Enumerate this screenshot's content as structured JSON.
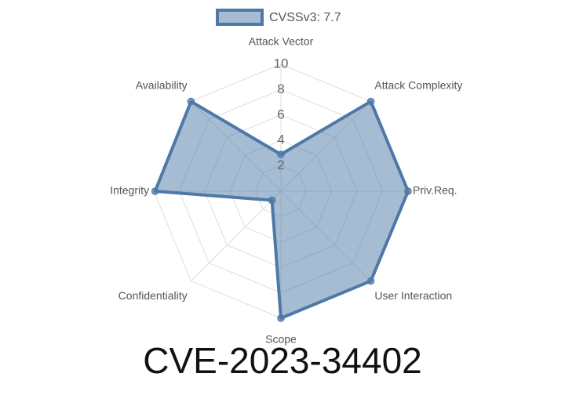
{
  "chart_data": {
    "type": "radar",
    "title": "CVE-2023-34402",
    "categories": [
      "Attack Vector",
      "Attack Complexity",
      "Priv.Req.",
      "User Interaction",
      "Scope",
      "Confidentiality",
      "Integrity",
      "Availability"
    ],
    "series": [
      {
        "name": "CVSSv3: 7.7",
        "color": "#4e79a7",
        "values": [
          2.9,
          10,
          10,
          10,
          10,
          1,
          9.9,
          10
        ]
      }
    ],
    "rlim": [
      0,
      10
    ],
    "rticks": [
      2,
      4,
      6,
      8,
      10
    ],
    "grid": true,
    "legend": "top"
  }
}
